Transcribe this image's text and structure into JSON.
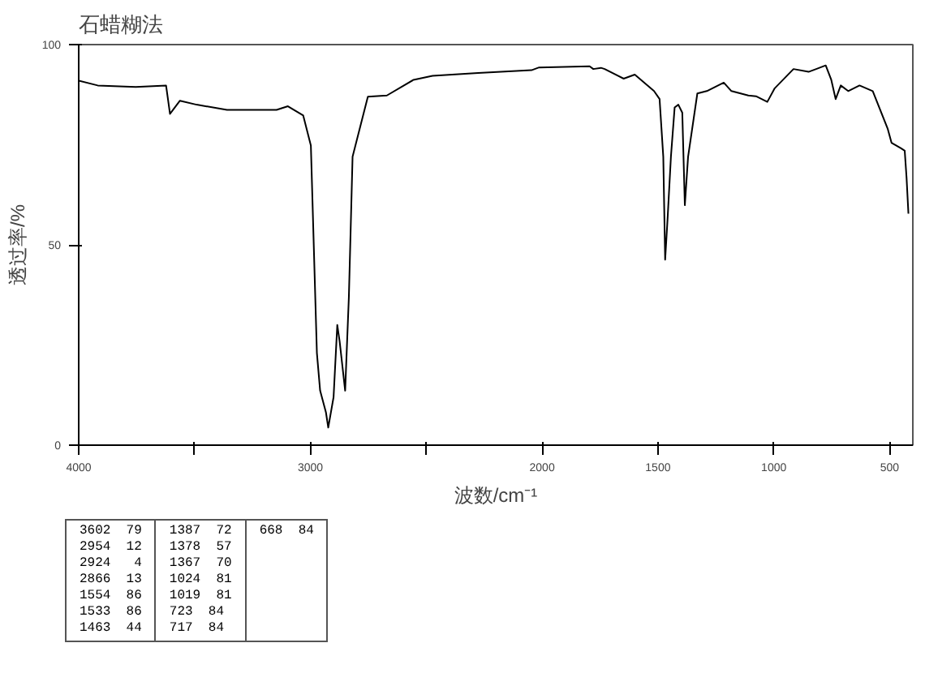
{
  "chart_data": {
    "type": "line",
    "title": "石蜡糊法",
    "xlabel": "波数/cm⁻¹",
    "ylabel": "透过率/%",
    "xlim": [
      4000,
      400
    ],
    "ylim": [
      0,
      100
    ],
    "xticks": [
      4000,
      {
        "value": 3500,
        "label": null
      },
      3000,
      {
        "value": 2500,
        "label": null
      },
      2000,
      1500,
      1000,
      500
    ],
    "yticks": [
      0,
      50,
      100
    ],
    "grid": false,
    "marker": "none",
    "line_style": "solid",
    "series": [
      {
        "color": "#000000",
        "x": [
          4000,
          3918,
          3754,
          3623,
          3606,
          3563,
          3491,
          3360,
          3146,
          3097,
          3031,
          2998,
          2972,
          2958,
          2933,
          2923,
          2900,
          2884,
          2874,
          2850,
          2834,
          2828,
          2818,
          2752,
          2670,
          2555,
          2473,
          2276,
          2046,
          2013,
          1795,
          1779,
          1746,
          1730,
          1648,
          1600,
          1559,
          1517,
          1493,
          1477,
          1469,
          1458,
          1444,
          1428,
          1412,
          1395,
          1384,
          1370,
          1330,
          1289,
          1216,
          1183,
          1110,
          1077,
          1028,
          996,
          915,
          850,
          817,
          776,
          752,
          733,
          711,
          679,
          630,
          573,
          508,
          492,
          451,
          435,
          427,
          419
        ],
        "values": [
          91,
          89.8,
          89.4,
          89.8,
          82.7,
          86,
          85,
          83.7,
          83.7,
          84.6,
          82.3,
          74.8,
          23,
          13.6,
          8.2,
          4.4,
          12,
          30,
          26,
          13.6,
          37,
          50,
          72,
          87,
          87.3,
          91.2,
          92.2,
          92.9,
          93.6,
          94.3,
          94.6,
          93.9,
          94.2,
          93.9,
          91.5,
          92.5,
          90.5,
          88.4,
          86.4,
          72,
          46.3,
          57,
          72,
          84.3,
          85,
          83,
          59.9,
          72,
          87.8,
          88.4,
          90.5,
          88.4,
          87.3,
          87.1,
          85.7,
          89.1,
          93.9,
          93.2,
          93.9,
          94.8,
          91.2,
          86.4,
          89.8,
          88.4,
          89.8,
          88.4,
          78.9,
          75.5,
          74.1,
          73.5,
          66.7,
          57.8
        ]
      }
    ],
    "annotations": [
      "3602  79",
      "2954  12",
      "2924   4",
      "2866  13",
      "1554  86",
      "1533  86",
      "1463  44",
      "1387  72",
      "1378  57",
      "1367  70",
      "1024  81",
      "1019  81",
      "723  84",
      "717  84",
      "668  84"
    ]
  }
}
